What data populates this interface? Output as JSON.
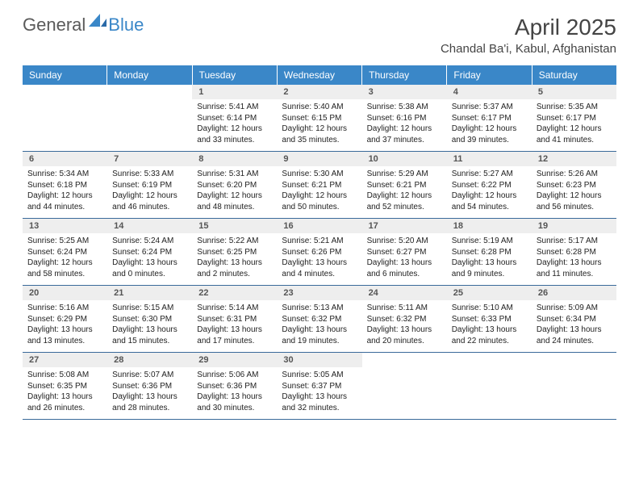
{
  "logo": {
    "general": "General",
    "blue": "Blue"
  },
  "title": "April 2025",
  "location": "Chandal Ba'i, Kabul, Afghanistan",
  "colors": {
    "header_bg": "#3a87c8",
    "header_text": "#ffffff",
    "daynum_bg": "#eeeeee",
    "daynum_text": "#555555",
    "row_border": "#3a6a9a",
    "body_text": "#222222"
  },
  "dayNames": [
    "Sunday",
    "Monday",
    "Tuesday",
    "Wednesday",
    "Thursday",
    "Friday",
    "Saturday"
  ],
  "weeks": [
    [
      null,
      null,
      {
        "n": "1",
        "sr": "5:41 AM",
        "ss": "6:14 PM",
        "dl": "12 hours and 33 minutes."
      },
      {
        "n": "2",
        "sr": "5:40 AM",
        "ss": "6:15 PM",
        "dl": "12 hours and 35 minutes."
      },
      {
        "n": "3",
        "sr": "5:38 AM",
        "ss": "6:16 PM",
        "dl": "12 hours and 37 minutes."
      },
      {
        "n": "4",
        "sr": "5:37 AM",
        "ss": "6:17 PM",
        "dl": "12 hours and 39 minutes."
      },
      {
        "n": "5",
        "sr": "5:35 AM",
        "ss": "6:17 PM",
        "dl": "12 hours and 41 minutes."
      }
    ],
    [
      {
        "n": "6",
        "sr": "5:34 AM",
        "ss": "6:18 PM",
        "dl": "12 hours and 44 minutes."
      },
      {
        "n": "7",
        "sr": "5:33 AM",
        "ss": "6:19 PM",
        "dl": "12 hours and 46 minutes."
      },
      {
        "n": "8",
        "sr": "5:31 AM",
        "ss": "6:20 PM",
        "dl": "12 hours and 48 minutes."
      },
      {
        "n": "9",
        "sr": "5:30 AM",
        "ss": "6:21 PM",
        "dl": "12 hours and 50 minutes."
      },
      {
        "n": "10",
        "sr": "5:29 AM",
        "ss": "6:21 PM",
        "dl": "12 hours and 52 minutes."
      },
      {
        "n": "11",
        "sr": "5:27 AM",
        "ss": "6:22 PM",
        "dl": "12 hours and 54 minutes."
      },
      {
        "n": "12",
        "sr": "5:26 AM",
        "ss": "6:23 PM",
        "dl": "12 hours and 56 minutes."
      }
    ],
    [
      {
        "n": "13",
        "sr": "5:25 AM",
        "ss": "6:24 PM",
        "dl": "12 hours and 58 minutes."
      },
      {
        "n": "14",
        "sr": "5:24 AM",
        "ss": "6:24 PM",
        "dl": "13 hours and 0 minutes."
      },
      {
        "n": "15",
        "sr": "5:22 AM",
        "ss": "6:25 PM",
        "dl": "13 hours and 2 minutes."
      },
      {
        "n": "16",
        "sr": "5:21 AM",
        "ss": "6:26 PM",
        "dl": "13 hours and 4 minutes."
      },
      {
        "n": "17",
        "sr": "5:20 AM",
        "ss": "6:27 PM",
        "dl": "13 hours and 6 minutes."
      },
      {
        "n": "18",
        "sr": "5:19 AM",
        "ss": "6:28 PM",
        "dl": "13 hours and 9 minutes."
      },
      {
        "n": "19",
        "sr": "5:17 AM",
        "ss": "6:28 PM",
        "dl": "13 hours and 11 minutes."
      }
    ],
    [
      {
        "n": "20",
        "sr": "5:16 AM",
        "ss": "6:29 PM",
        "dl": "13 hours and 13 minutes."
      },
      {
        "n": "21",
        "sr": "5:15 AM",
        "ss": "6:30 PM",
        "dl": "13 hours and 15 minutes."
      },
      {
        "n": "22",
        "sr": "5:14 AM",
        "ss": "6:31 PM",
        "dl": "13 hours and 17 minutes."
      },
      {
        "n": "23",
        "sr": "5:13 AM",
        "ss": "6:32 PM",
        "dl": "13 hours and 19 minutes."
      },
      {
        "n": "24",
        "sr": "5:11 AM",
        "ss": "6:32 PM",
        "dl": "13 hours and 20 minutes."
      },
      {
        "n": "25",
        "sr": "5:10 AM",
        "ss": "6:33 PM",
        "dl": "13 hours and 22 minutes."
      },
      {
        "n": "26",
        "sr": "5:09 AM",
        "ss": "6:34 PM",
        "dl": "13 hours and 24 minutes."
      }
    ],
    [
      {
        "n": "27",
        "sr": "5:08 AM",
        "ss": "6:35 PM",
        "dl": "13 hours and 26 minutes."
      },
      {
        "n": "28",
        "sr": "5:07 AM",
        "ss": "6:36 PM",
        "dl": "13 hours and 28 minutes."
      },
      {
        "n": "29",
        "sr": "5:06 AM",
        "ss": "6:36 PM",
        "dl": "13 hours and 30 minutes."
      },
      {
        "n": "30",
        "sr": "5:05 AM",
        "ss": "6:37 PM",
        "dl": "13 hours and 32 minutes."
      },
      null,
      null,
      null
    ]
  ],
  "labels": {
    "sunrise": "Sunrise:",
    "sunset": "Sunset:",
    "daylight": "Daylight:"
  }
}
